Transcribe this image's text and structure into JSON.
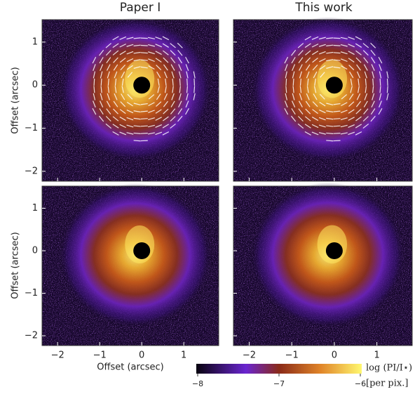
{
  "columns": [
    "Paper I",
    "This work"
  ],
  "xaxis": {
    "label": "Offset (arcsec)",
    "xlim": [
      -2.37,
      1.83
    ],
    "xticks": [
      {
        "value": -2,
        "label": "−2"
      },
      {
        "value": -1,
        "label": "−1"
      },
      0,
      1
    ]
  },
  "yaxis": {
    "label": "Offset (arcsec)",
    "ylim": [
      -2.23,
      1.52
    ],
    "yticks": [
      1,
      0,
      {
        "value": -1,
        "label": "−1"
      },
      {
        "value": -2,
        "label": "−2"
      }
    ]
  },
  "colorbar": {
    "lim": [
      -8,
      -6
    ],
    "ticks": [
      {
        "value": -8,
        "label": "−8"
      },
      {
        "value": -7,
        "label": "−7"
      },
      {
        "value": -6,
        "label": "−6"
      }
    ],
    "label": "log (PI/I⋆)",
    "unit": "[per pix.]"
  }
}
